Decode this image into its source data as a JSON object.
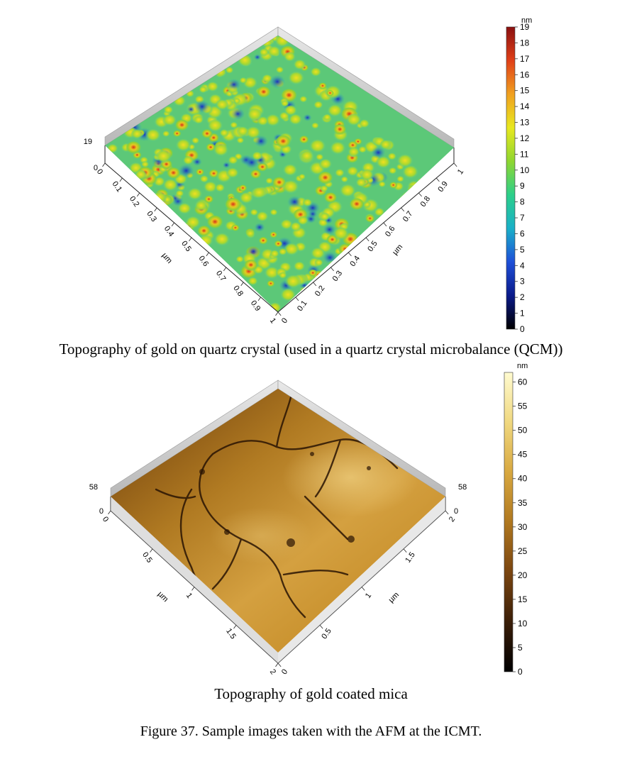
{
  "panel_top": {
    "caption": "Topography of gold on quartz crystal (used in a quartz crystal microbalance (QCM))",
    "z_max_label": "19",
    "z_min_label": "0",
    "x_ticks": [
      "0",
      "0.1",
      "0.2",
      "0.3",
      "0.4",
      "0.5",
      "0.6",
      "0.7",
      "0.8",
      "0.9",
      "1"
    ],
    "y_ticks": [
      "0",
      "0.1",
      "0.2",
      "0.3",
      "0.4",
      "0.5",
      "0.6",
      "0.7",
      "0.8",
      "0.9",
      "1"
    ],
    "axis_unit": "µm",
    "colorbar": {
      "unit": "nm",
      "ticks": [
        "0",
        "1",
        "2",
        "3",
        "4",
        "5",
        "6",
        "7",
        "8",
        "9",
        "10",
        "11",
        "12",
        "13",
        "14",
        "15",
        "16",
        "17",
        "18",
        "19"
      ],
      "min": 0,
      "max": 19,
      "colormap": [
        "#000000",
        "#0a1a8a",
        "#1e4fd8",
        "#1ab0c8",
        "#2ccf8a",
        "#8fd630",
        "#e8e820",
        "#f0a020",
        "#e04018",
        "#8a1010"
      ]
    }
  },
  "panel_bottom": {
    "caption": "Topography of gold coated mica",
    "z_max_label": "58",
    "z_min_label": "0",
    "z_max_label_right": "58",
    "z_min_label_right": "0",
    "x_ticks": [
      "0",
      "0.5",
      "1",
      "1.5",
      "2"
    ],
    "y_ticks": [
      "0",
      "0.5",
      "1",
      "1.5",
      "2"
    ],
    "axis_unit": "µm",
    "colorbar": {
      "unit": "nm",
      "ticks": [
        "0",
        "5",
        "10",
        "15",
        "20",
        "25",
        "30",
        "35",
        "40",
        "45",
        "50",
        "55",
        "60"
      ],
      "min": 0,
      "max": 62,
      "colormap": [
        "#000000",
        "#3a1e08",
        "#7a4510",
        "#b07820",
        "#d8a840",
        "#f0d880",
        "#fffbd0"
      ]
    }
  },
  "figure_caption": "Figure 37. Sample images taken with the AFM at the ICMT."
}
